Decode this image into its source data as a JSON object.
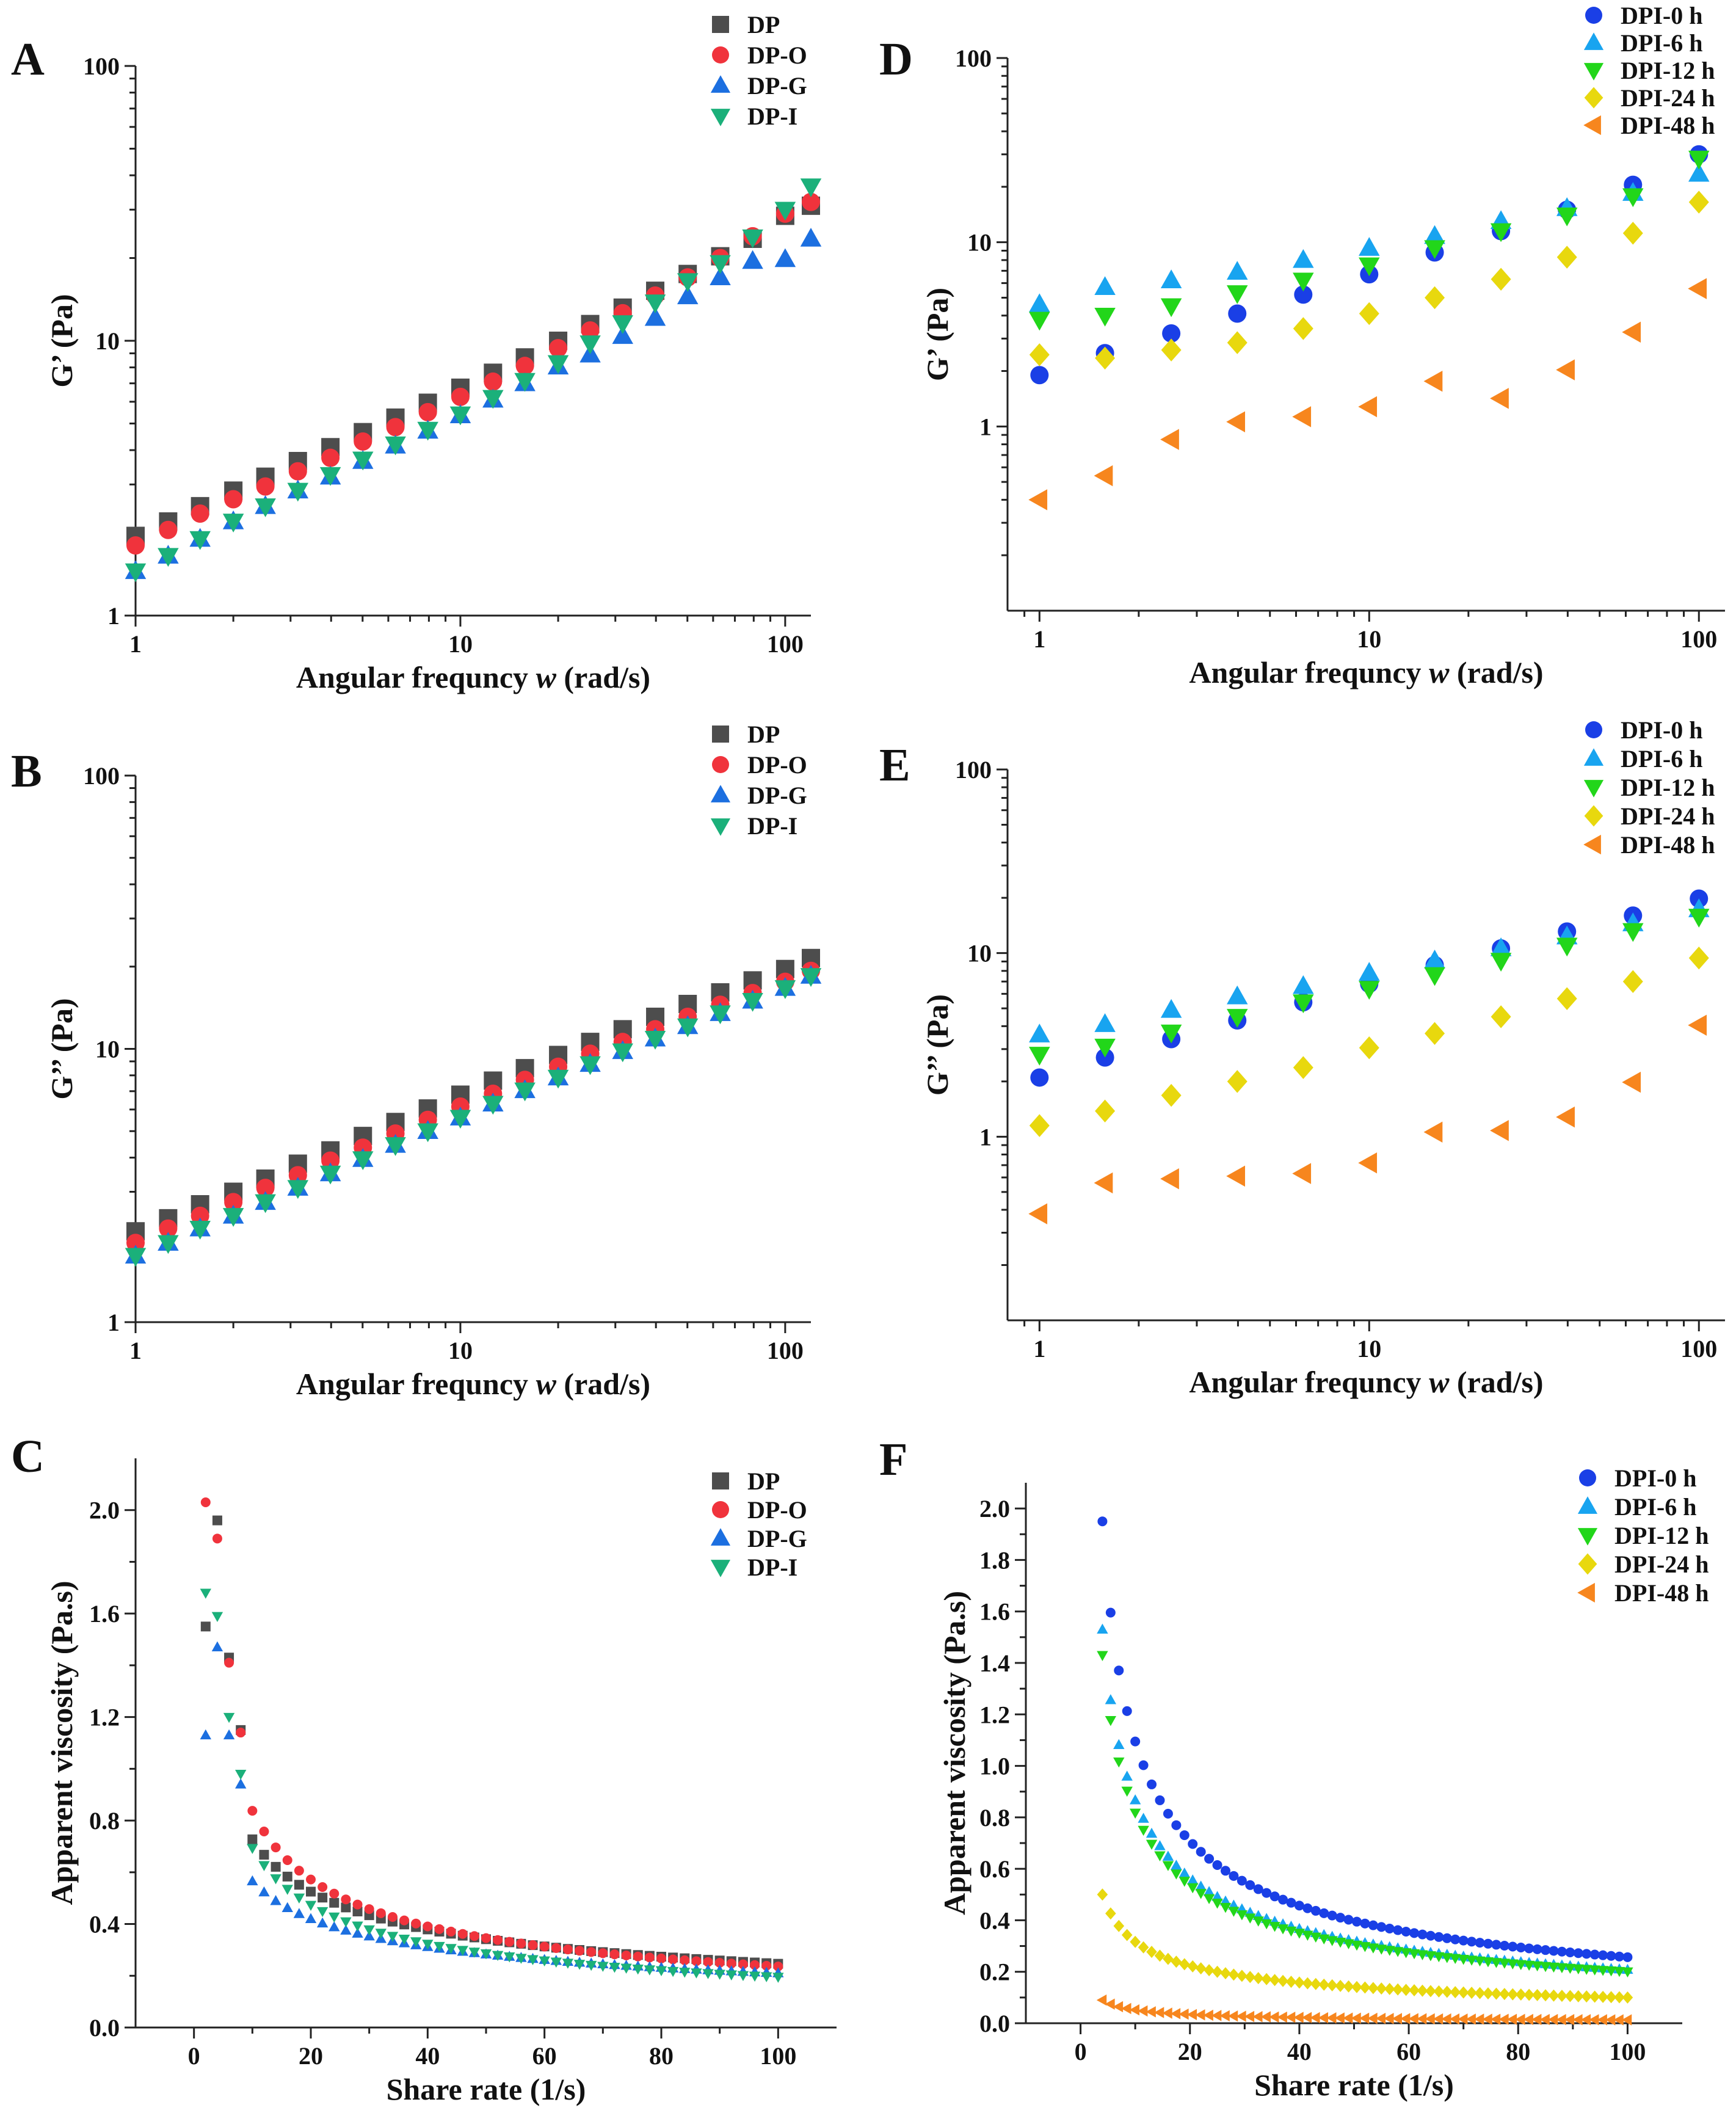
{
  "colors": {
    "DP": "#4d4d4d",
    "DP-O": "#f0333c",
    "DP-G": "#1c6fe0",
    "DP-I": "#1bb07a",
    "DPI-0 h": "#1a3fe6",
    "DPI-6 h": "#18a4f0",
    "DPI-12 h": "#22d61a",
    "DPI-24 h": "#e8d80e",
    "DPI-48 h": "#f7861e"
  },
  "chart_data": [
    {
      "id": "A",
      "type": "scatter",
      "xscale": "log",
      "yscale": "log",
      "xlim": [
        1,
        120
      ],
      "ylim": [
        1,
        100
      ],
      "xlabel_pre": "Angular frequncy ",
      "xlabel_var": "w",
      "xlabel_post": " (rad/s)",
      "ylabel": "G’ (Pa)",
      "xticks": [
        1,
        10,
        100
      ],
      "xtick_labels": [
        "1",
        "10",
        "100"
      ],
      "yticks": [
        1,
        10,
        100
      ],
      "ytick_labels": [
        "1",
        "10",
        "100"
      ],
      "legend_position": "top-right",
      "x": [
        1,
        1.26,
        1.58,
        2,
        2.51,
        3.16,
        3.98,
        5.01,
        6.31,
        7.94,
        10,
        12.6,
        15.8,
        20,
        25.1,
        31.6,
        39.8,
        50.1,
        63.1,
        79.4,
        100,
        120
      ],
      "series": [
        {
          "name": "DP",
          "marker": "square",
          "values": [
            1.95,
            2.2,
            2.5,
            2.85,
            3.2,
            3.65,
            4.1,
            4.65,
            5.25,
            5.95,
            6.75,
            7.65,
            8.7,
            10,
            11.5,
            13.2,
            15.2,
            17.5,
            20.3,
            23.5,
            28.5,
            31
          ]
        },
        {
          "name": "DP-O",
          "marker": "circle",
          "values": [
            1.8,
            2.05,
            2.35,
            2.65,
            2.95,
            3.35,
            3.75,
            4.3,
            4.85,
            5.5,
            6.25,
            7.1,
            8.1,
            9.4,
            10.9,
            12.6,
            14.6,
            17,
            20,
            24,
            29,
            32
          ]
        },
        {
          "name": "DP-G",
          "marker": "triangle-up",
          "values": [
            1.45,
            1.65,
            1.9,
            2.2,
            2.5,
            2.85,
            3.2,
            3.65,
            4.15,
            4.7,
            5.35,
            6.1,
            7,
            8.05,
            8.9,
            10.4,
            12.1,
            14.5,
            17,
            19.5,
            19.8,
            23.5
          ]
        },
        {
          "name": "DP-I",
          "marker": "triangle-down",
          "values": [
            1.45,
            1.65,
            1.9,
            2.2,
            2.5,
            2.85,
            3.25,
            3.7,
            4.2,
            4.75,
            5.4,
            6.2,
            7.15,
            8.3,
            9.8,
            11.6,
            13.8,
            16.5,
            19.2,
            23.8,
            30,
            36.5
          ]
        }
      ]
    },
    {
      "id": "B",
      "type": "scatter",
      "xscale": "log",
      "yscale": "log",
      "xlim": [
        1,
        120
      ],
      "ylim": [
        1,
        100
      ],
      "xlabel_pre": "Angular frequncy ",
      "xlabel_var": "w",
      "xlabel_post": " (rad/s)",
      "ylabel": "G’’ (Pa)",
      "xticks": [
        1,
        10,
        100
      ],
      "xtick_labels": [
        "1",
        "10",
        "100"
      ],
      "yticks": [
        1,
        10,
        100
      ],
      "ytick_labels": [
        "1",
        "10",
        "100"
      ],
      "legend_position": "top-right",
      "x": [
        1,
        1.26,
        1.58,
        2,
        2.51,
        3.16,
        3.98,
        5.01,
        6.31,
        7.94,
        10,
        12.6,
        15.8,
        20,
        25.1,
        31.6,
        39.8,
        50.1,
        63.1,
        79.4,
        100,
        120
      ],
      "series": [
        {
          "name": "DP",
          "marker": "square",
          "values": [
            2.15,
            2.4,
            2.7,
            3.0,
            3.35,
            3.8,
            4.25,
            4.8,
            5.4,
            6.05,
            6.8,
            7.65,
            8.5,
            9.5,
            10.6,
            11.8,
            13.1,
            14.6,
            16.1,
            17.8,
            19.6,
            21.5
          ]
        },
        {
          "name": "DP-O",
          "marker": "circle",
          "values": [
            1.95,
            2.2,
            2.45,
            2.75,
            3.1,
            3.45,
            3.9,
            4.35,
            4.9,
            5.5,
            6.15,
            6.85,
            7.7,
            8.6,
            9.6,
            10.6,
            11.8,
            13.1,
            14.5,
            16,
            17.6,
            19.3
          ]
        },
        {
          "name": "DP-G",
          "marker": "triangle-up",
          "values": [
            1.75,
            1.95,
            2.2,
            2.45,
            2.75,
            3.1,
            3.5,
            3.95,
            4.45,
            5.0,
            5.6,
            6.3,
            7.05,
            7.85,
            8.8,
            9.8,
            10.9,
            12.1,
            13.5,
            15,
            16.7,
            18.5
          ]
        },
        {
          "name": "DP-I",
          "marker": "triangle-down",
          "values": [
            1.75,
            1.95,
            2.2,
            2.45,
            2.75,
            3.1,
            3.5,
            3.95,
            4.45,
            5.0,
            5.6,
            6.3,
            7.05,
            7.85,
            8.8,
            9.8,
            10.9,
            12.1,
            13.5,
            15,
            16.7,
            18.5
          ]
        }
      ]
    },
    {
      "id": "C",
      "type": "scatter",
      "xscale": "linear",
      "yscale": "linear",
      "xlim": [
        -10,
        110
      ],
      "ylim": [
        0,
        2.2
      ],
      "xlabel": "Share rate (1/s)",
      "ylabel": "Apparent viscosity (Pa.s)",
      "xticks": [
        0,
        20,
        40,
        60,
        80,
        100
      ],
      "xtick_labels": [
        "0",
        "20",
        "40",
        "60",
        "80",
        "100"
      ],
      "yticks": [
        0,
        0.4,
        0.8,
        1.2,
        1.6,
        2.0
      ],
      "ytick_labels": [
        "0.0",
        "0.4",
        "0.8",
        "1.2",
        "1.6",
        "2.0"
      ],
      "legend_position": "top-right",
      "x_start": 2,
      "x_end": 100,
      "x_step": 2,
      "series": [
        {
          "name": "DP",
          "marker": "square",
          "rule": "power",
          "A": 1.55,
          "x0": 2,
          "exponent": 0.47,
          "override": {
            "4": 1.96,
            "6": 1.43,
            "8": 1.15
          }
        },
        {
          "name": "DP-O",
          "marker": "circle",
          "rule": "power",
          "A": 2.03,
          "x0": 2,
          "exponent": 0.55,
          "override": {
            "4": 1.89,
            "6": 1.41,
            "8": 1.14
          }
        },
        {
          "name": "DP-G",
          "marker": "triangle-up",
          "rule": "power",
          "A": 1.13,
          "x0": 2,
          "exponent": 0.43,
          "override": {
            "4": 1.47,
            "6": 1.13,
            "8": 0.94
          }
        },
        {
          "name": "DP-I",
          "marker": "triangle-down",
          "rule": "power",
          "A": 1.68,
          "x0": 2,
          "exponent": 0.55,
          "override": {
            "4": 1.59,
            "6": 1.2,
            "8": 0.98
          }
        }
      ]
    },
    {
      "id": "D",
      "type": "scatter",
      "xscale": "log",
      "yscale": "log",
      "xlim": [
        0.8,
        120
      ],
      "ylim": [
        0.1,
        100
      ],
      "xlabel_pre": "Angular frequncy ",
      "xlabel_var": "w",
      "xlabel_post": " (rad/s)",
      "ylabel": "G’ (Pa)",
      "xticks": [
        1,
        10,
        100
      ],
      "xtick_labels": [
        "1",
        "10",
        "100"
      ],
      "yticks": [
        1,
        10,
        100
      ],
      "ytick_labels": [
        "1",
        "10",
        "100"
      ],
      "legend_position": "top-right",
      "x": [
        1,
        1.58,
        2.51,
        3.98,
        6.31,
        10,
        15.8,
        25.1,
        39.8,
        63.1,
        100
      ],
      "series": [
        {
          "name": "DPI-0 h",
          "marker": "circle",
          "values": [
            1.9,
            2.5,
            3.2,
            4.1,
            5.2,
            6.7,
            8.8,
            11.5,
            15,
            20.5,
            30
          ]
        },
        {
          "name": "DPI-6 h",
          "marker": "triangle-up",
          "values": [
            4.6,
            5.7,
            6.2,
            6.9,
            8,
            9.3,
            10.8,
            13,
            15.3,
            18.5,
            23.5
          ]
        },
        {
          "name": "DPI-12 h",
          "marker": "triangle-down",
          "values": [
            3.8,
            4,
            4.5,
            5.3,
            6.2,
            7.5,
            9.3,
            11.5,
            14,
            17.8,
            28.5
          ]
        },
        {
          "name": "DPI-24 h",
          "marker": "diamond",
          "values": [
            2.45,
            2.35,
            2.6,
            2.85,
            3.4,
            4.1,
            5,
            6.3,
            8.3,
            11.2,
            16.5
          ]
        },
        {
          "name": "DPI-48 h",
          "marker": "triangle-left",
          "values": [
            0.4,
            0.54,
            0.85,
            1.06,
            1.13,
            1.28,
            1.76,
            1.42,
            2.03,
            3.25,
            5.6
          ]
        }
      ]
    },
    {
      "id": "E",
      "type": "scatter",
      "xscale": "log",
      "yscale": "log",
      "xlim": [
        0.8,
        120
      ],
      "ylim": [
        0.1,
        100
      ],
      "xlabel_pre": "Angular frequncy ",
      "xlabel_var": "w",
      "xlabel_post": " (rad/s)",
      "ylabel": "G’’ (Pa)",
      "xticks": [
        1,
        10,
        100
      ],
      "xtick_labels": [
        "1",
        "10",
        "100"
      ],
      "yticks": [
        1,
        10,
        100
      ],
      "ytick_labels": [
        "1",
        "10",
        "100"
      ],
      "legend_position": "top-right",
      "x": [
        1,
        1.58,
        2.51,
        3.98,
        6.31,
        10,
        15.8,
        25.1,
        39.8,
        63.1,
        100
      ],
      "series": [
        {
          "name": "DPI-0 h",
          "marker": "circle",
          "values": [
            2.1,
            2.7,
            3.4,
            4.3,
            5.4,
            6.8,
            8.6,
            10.6,
            13.1,
            16,
            19.8
          ]
        },
        {
          "name": "DPI-6 h",
          "marker": "triangle-up",
          "values": [
            3.6,
            4.1,
            4.9,
            5.8,
            6.6,
            7.8,
            9.1,
            10.6,
            12.3,
            14.5,
            17.3
          ]
        },
        {
          "name": "DPI-12 h",
          "marker": "triangle-down",
          "values": [
            2.8,
            3.1,
            3.7,
            4.5,
            5.4,
            6.4,
            7.6,
            9.1,
            11,
            13.2,
            15.8
          ]
        },
        {
          "name": "DPI-24 h",
          "marker": "diamond",
          "values": [
            1.15,
            1.38,
            1.68,
            2,
            2.38,
            3.05,
            3.65,
            4.5,
            5.65,
            7,
            9.4
          ]
        },
        {
          "name": "DPI-48 h",
          "marker": "triangle-left",
          "values": [
            0.38,
            0.56,
            0.59,
            0.61,
            0.63,
            0.72,
            1.06,
            1.08,
            1.28,
            1.98,
            4.05
          ]
        }
      ]
    },
    {
      "id": "F",
      "type": "scatter",
      "xscale": "linear",
      "yscale": "linear",
      "xlim": [
        -10,
        110
      ],
      "ylim": [
        0,
        2.1
      ],
      "xlabel": "Share rate (1/s)",
      "ylabel": "Apparent viscosity (Pa.s)",
      "xticks": [
        0,
        20,
        40,
        60,
        80,
        100
      ],
      "xtick_labels": [
        "0",
        "20",
        "40",
        "60",
        "80",
        "100"
      ],
      "yticks": [
        0,
        0.2,
        0.4,
        0.6,
        0.8,
        1.0,
        1.2,
        1.4,
        1.6,
        1.8,
        2.0
      ],
      "ytick_labels": [
        "0.0",
        "0.2",
        "0.4",
        "0.6",
        "0.8",
        "1.0",
        "1.2",
        "1.4",
        "1.6",
        "1.8",
        "2.0"
      ],
      "legend_position": "top-right",
      "x_start": 4,
      "x_end": 100,
      "x_step": 1.5,
      "series": [
        {
          "name": "DPI-0 h",
          "marker": "circle",
          "rule": "power",
          "A": 1.95,
          "x0": 4,
          "exponent": 0.63
        },
        {
          "name": "DPI-6 h",
          "marker": "triangle-up",
          "rule": "power",
          "A": 1.53,
          "x0": 4,
          "exponent": 0.62
        },
        {
          "name": "DPI-12 h",
          "marker": "triangle-down",
          "rule": "power",
          "A": 1.43,
          "x0": 4,
          "exponent": 0.61
        },
        {
          "name": "DPI-24 h",
          "marker": "diamond",
          "rule": "power",
          "A": 0.5,
          "x0": 4,
          "exponent": 0.5
        },
        {
          "name": "DPI-48 h",
          "marker": "triangle-left",
          "rule": "power",
          "A": 0.09,
          "x0": 4,
          "exponent": 0.6
        }
      ]
    }
  ]
}
